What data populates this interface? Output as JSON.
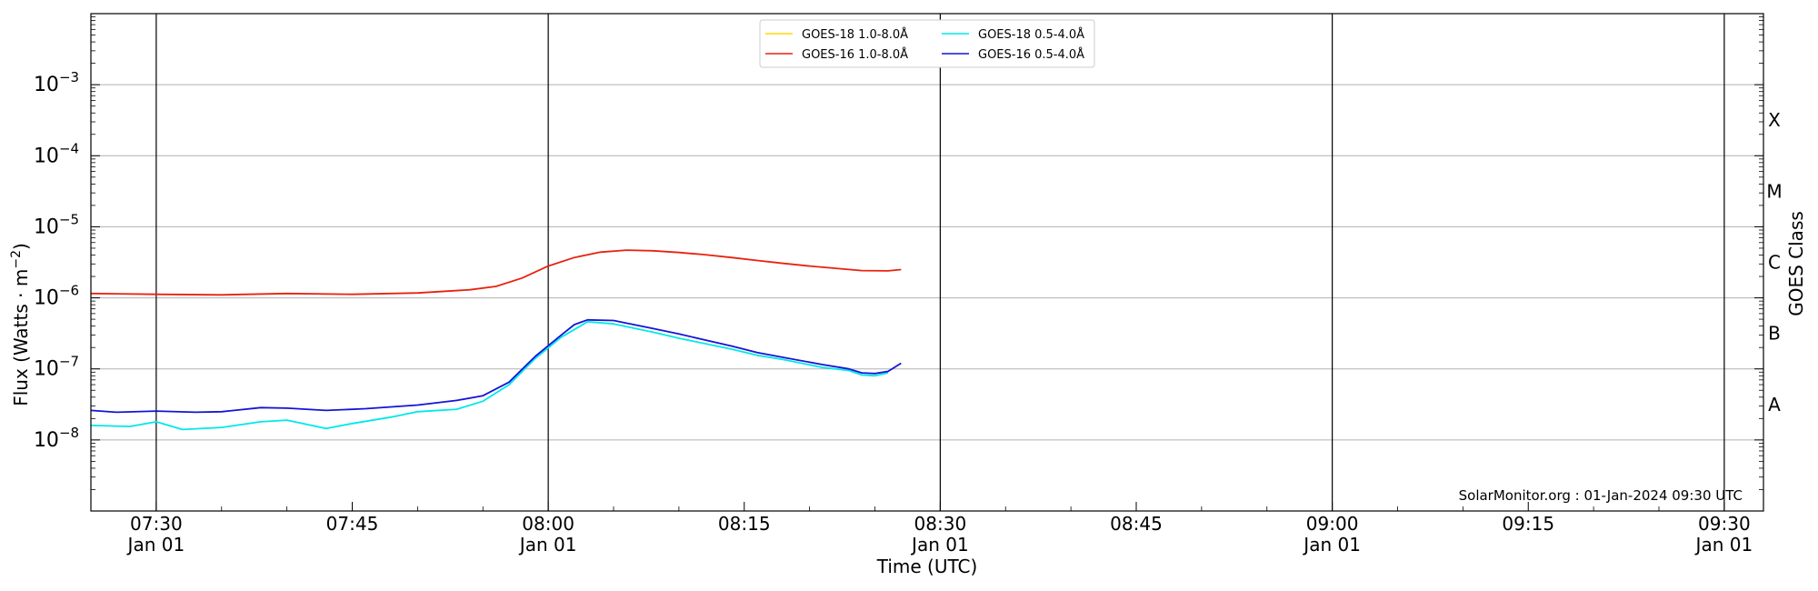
{
  "chart_data": {
    "type": "line",
    "xlabel": "Time (UTC)",
    "ylabel_main": "Flux (Watts · m",
    "ylabel_sup": "−2",
    "ylabel_close": ")",
    "y2label": "GOES Class",
    "yscale": "log",
    "ylim": [
      1e-09,
      0.01
    ],
    "xlim": [
      "07:25",
      "09:33"
    ],
    "grid": "horizontal",
    "legend_placement": "top-center",
    "watermark": "SolarMonitor.org : 01-Jan-2024 09:30 UTC",
    "y_ticks": [
      {
        "exp": "−3",
        "value": 0.001
      },
      {
        "exp": "−4",
        "value": 0.0001
      },
      {
        "exp": "−5",
        "value": 1e-05
      },
      {
        "exp": "−6",
        "value": 1e-06
      },
      {
        "exp": "−7",
        "value": 1e-07
      },
      {
        "exp": "−8",
        "value": 1e-08
      }
    ],
    "x_ticks": [
      {
        "time": "07:30",
        "label": "07:30",
        "sub": "Jan 01"
      },
      {
        "time": "07:45",
        "label": "07:45",
        "sub": ""
      },
      {
        "time": "08:00",
        "label": "08:00",
        "sub": "Jan 01"
      },
      {
        "time": "08:15",
        "label": "08:15",
        "sub": ""
      },
      {
        "time": "08:30",
        "label": "08:30",
        "sub": "Jan 01"
      },
      {
        "time": "08:45",
        "label": "08:45",
        "sub": ""
      },
      {
        "time": "09:00",
        "label": "09:00",
        "sub": "Jan 01"
      },
      {
        "time": "09:15",
        "label": "09:15",
        "sub": ""
      },
      {
        "time": "09:30",
        "label": "09:30",
        "sub": "Jan 01"
      }
    ],
    "vlines": [
      "07:30",
      "08:00",
      "08:30",
      "09:00",
      "09:30"
    ],
    "goes_classes": [
      {
        "label": "X",
        "value": 0.000316
      },
      {
        "label": "M",
        "value": 3.16e-05
      },
      {
        "label": "C",
        "value": 3.16e-06
      },
      {
        "label": "B",
        "value": 3.16e-07
      },
      {
        "label": "A",
        "value": 3.16e-08
      }
    ],
    "series": [
      {
        "name": "GOES-18 1.0-8.0Å",
        "color": "#ffd700",
        "legend_col": 0,
        "points": []
      },
      {
        "name": "GOES-16 1.0-8.0Å",
        "color": "#e8220e",
        "legend_col": 0,
        "points": [
          [
            "07:25",
            1.15e-06
          ],
          [
            "07:30",
            1.12e-06
          ],
          [
            "07:35",
            1.1e-06
          ],
          [
            "07:40",
            1.15e-06
          ],
          [
            "07:45",
            1.12e-06
          ],
          [
            "07:50",
            1.17e-06
          ],
          [
            "07:54",
            1.3e-06
          ],
          [
            "07:56",
            1.45e-06
          ],
          [
            "07:58",
            1.9e-06
          ],
          [
            "08:00",
            2.8e-06
          ],
          [
            "08:02",
            3.7e-06
          ],
          [
            "08:04",
            4.4e-06
          ],
          [
            "08:06",
            4.7e-06
          ],
          [
            "08:08",
            4.6e-06
          ],
          [
            "08:10",
            4.35e-06
          ],
          [
            "08:12",
            4.05e-06
          ],
          [
            "08:14",
            3.7e-06
          ],
          [
            "08:16",
            3.35e-06
          ],
          [
            "08:18",
            3.05e-06
          ],
          [
            "08:20",
            2.8e-06
          ],
          [
            "08:22",
            2.6e-06
          ],
          [
            "08:24",
            2.42e-06
          ],
          [
            "08:26",
            2.4e-06
          ],
          [
            "08:27",
            2.5e-06
          ]
        ]
      },
      {
        "name": "GOES-18 0.5-4.0Å",
        "color": "#00e8e8",
        "legend_col": 1,
        "points": [
          [
            "07:25",
            1.6e-08
          ],
          [
            "07:28",
            1.55e-08
          ],
          [
            "07:30",
            1.8e-08
          ],
          [
            "07:32",
            1.4e-08
          ],
          [
            "07:35",
            1.5e-08
          ],
          [
            "07:38",
            1.8e-08
          ],
          [
            "07:40",
            1.9e-08
          ],
          [
            "07:43",
            1.45e-08
          ],
          [
            "07:45",
            1.7e-08
          ],
          [
            "07:48",
            2.1e-08
          ],
          [
            "07:50",
            2.5e-08
          ],
          [
            "07:53",
            2.7e-08
          ],
          [
            "07:55",
            3.5e-08
          ],
          [
            "07:57",
            6e-08
          ],
          [
            "07:59",
            1.4e-07
          ],
          [
            "08:01",
            2.8e-07
          ],
          [
            "08:03",
            4.6e-07
          ],
          [
            "08:05",
            4.3e-07
          ],
          [
            "08:08",
            3.3e-07
          ],
          [
            "08:10",
            2.7e-07
          ],
          [
            "08:14",
            1.9e-07
          ],
          [
            "08:16",
            1.55e-07
          ],
          [
            "08:18",
            1.35e-07
          ],
          [
            "08:21",
            1.05e-07
          ],
          [
            "08:23",
            9.5e-08
          ],
          [
            "08:24",
            8.2e-08
          ],
          [
            "08:25",
            8e-08
          ],
          [
            "08:26",
            8.8e-08
          ]
        ]
      },
      {
        "name": "GOES-16 0.5-4.0Å",
        "color": "#1414d8",
        "legend_col": 1,
        "points": [
          [
            "07:25",
            2.6e-08
          ],
          [
            "07:27",
            2.45e-08
          ],
          [
            "07:30",
            2.55e-08
          ],
          [
            "07:33",
            2.45e-08
          ],
          [
            "07:35",
            2.5e-08
          ],
          [
            "07:38",
            2.85e-08
          ],
          [
            "07:40",
            2.8e-08
          ],
          [
            "07:43",
            2.6e-08
          ],
          [
            "07:46",
            2.75e-08
          ],
          [
            "07:50",
            3.1e-08
          ],
          [
            "07:53",
            3.6e-08
          ],
          [
            "07:55",
            4.2e-08
          ],
          [
            "07:57",
            6.5e-08
          ],
          [
            "07:59",
            1.5e-07
          ],
          [
            "08:01",
            3e-07
          ],
          [
            "08:02",
            4.2e-07
          ],
          [
            "08:03",
            4.9e-07
          ],
          [
            "08:05",
            4.8e-07
          ],
          [
            "08:08",
            3.7e-07
          ],
          [
            "08:10",
            3.1e-07
          ],
          [
            "08:14",
            2.1e-07
          ],
          [
            "08:16",
            1.7e-07
          ],
          [
            "08:18",
            1.45e-07
          ],
          [
            "08:21",
            1.15e-07
          ],
          [
            "08:23",
            1e-07
          ],
          [
            "08:24",
            8.8e-08
          ],
          [
            "08:25",
            8.6e-08
          ],
          [
            "08:26",
            9.2e-08
          ],
          [
            "08:27",
            1.2e-07
          ]
        ]
      }
    ]
  }
}
